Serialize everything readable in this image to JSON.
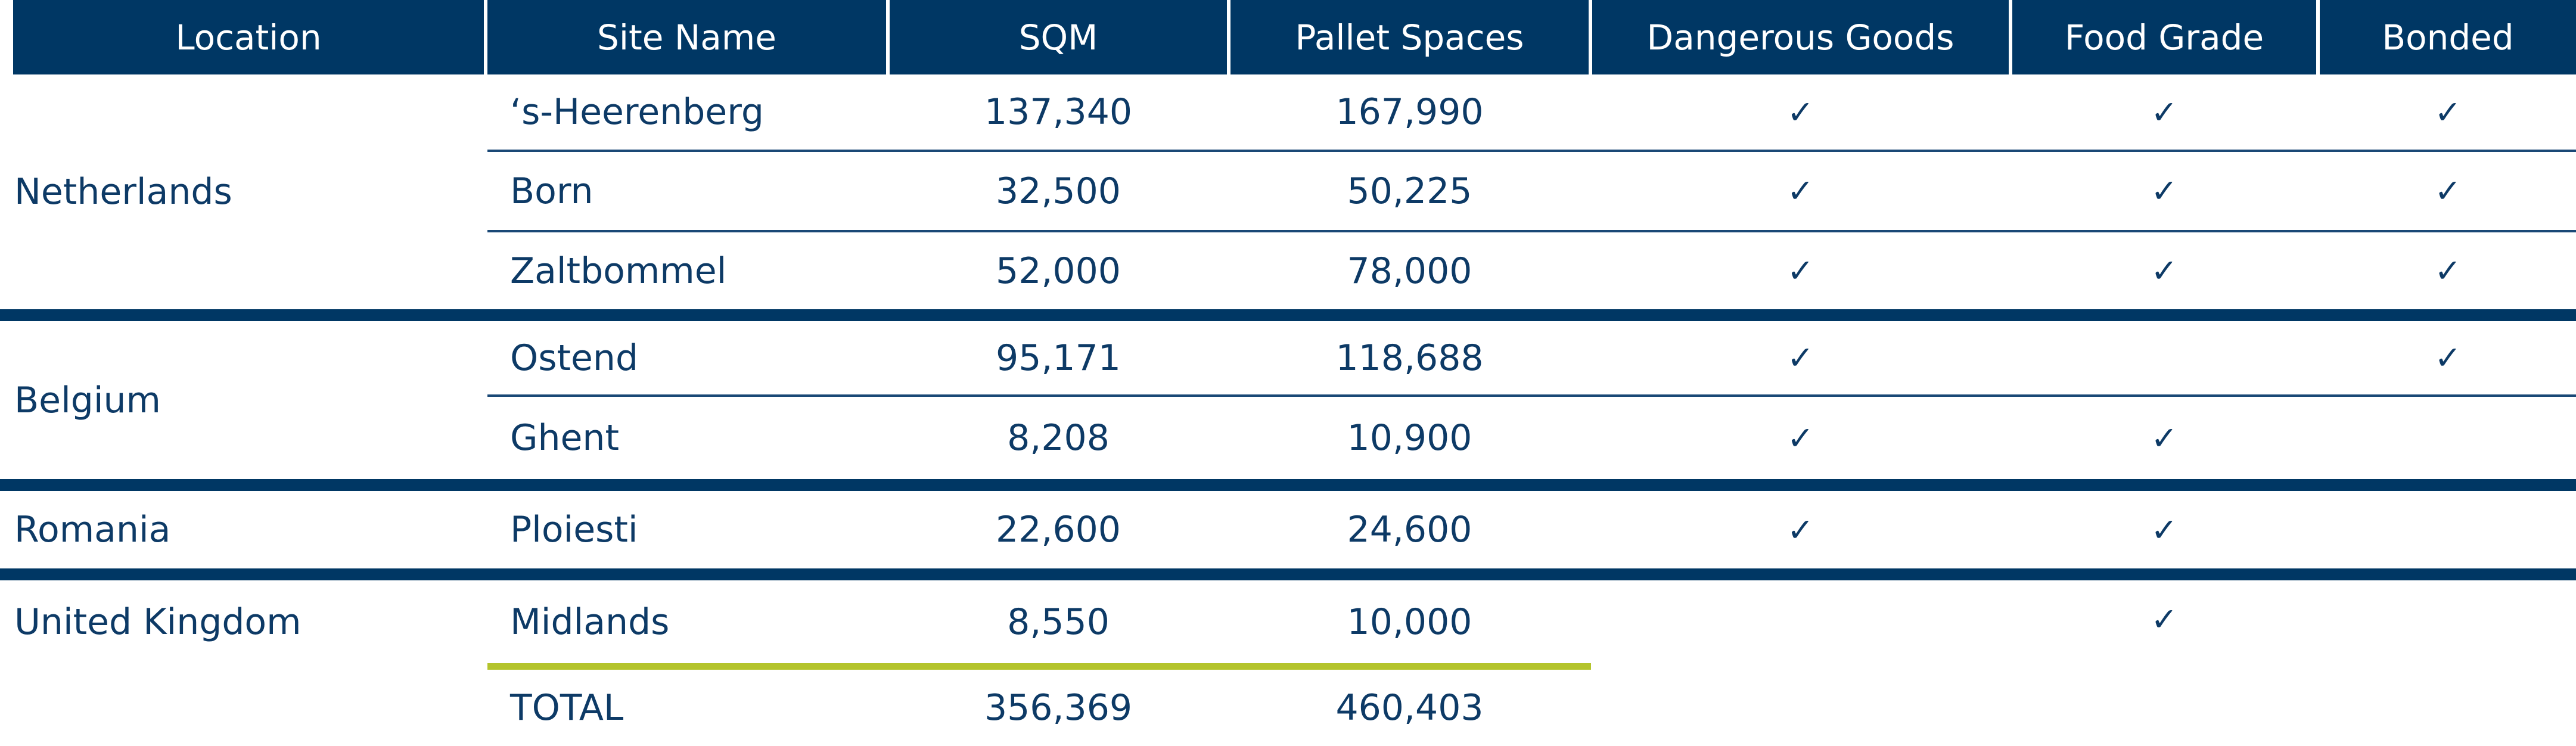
{
  "headers": {
    "location": "Location",
    "site_name": "Site Name",
    "sqm": "SQM",
    "pallet_spaces": "Pallet Spaces",
    "dangerous_goods": "Dangerous Goods",
    "food_grade": "Food Grade",
    "bonded": "Bonded"
  },
  "check_glyph": "✓",
  "groups": [
    {
      "country": "Netherlands",
      "rows": [
        {
          "site": "‘s-Heerenberg",
          "sqm": "137,340",
          "pallets": "167,990",
          "dangerous_goods": true,
          "food_grade": true,
          "bonded": true
        },
        {
          "site": "Born",
          "sqm": "32,500",
          "pallets": "50,225",
          "dangerous_goods": true,
          "food_grade": true,
          "bonded": true
        },
        {
          "site": "Zaltbommel",
          "sqm": "52,000",
          "pallets": "78,000",
          "dangerous_goods": true,
          "food_grade": true,
          "bonded": true
        }
      ]
    },
    {
      "country": "Belgium",
      "rows": [
        {
          "site": "Ostend",
          "sqm": "95,171",
          "pallets": "118,688",
          "dangerous_goods": true,
          "food_grade": false,
          "bonded": true
        },
        {
          "site": "Ghent",
          "sqm": "8,208",
          "pallets": "10,900",
          "dangerous_goods": true,
          "food_grade": true,
          "bonded": false
        }
      ]
    },
    {
      "country": "Romania",
      "rows": [
        {
          "site": "Ploiesti",
          "sqm": "22,600",
          "pallets": "24,600",
          "dangerous_goods": true,
          "food_grade": true,
          "bonded": false
        }
      ]
    },
    {
      "country": "United Kingdom",
      "rows": [
        {
          "site": "Midlands",
          "sqm": "8,550",
          "pallets": "10,000",
          "dangerous_goods": false,
          "food_grade": true,
          "bonded": false
        }
      ]
    }
  ],
  "total": {
    "label": "TOTAL",
    "sqm": "356,369",
    "pallets": "460,403"
  },
  "colors": {
    "header_bg": "#003764",
    "text": "#0d3a66",
    "total_rule": "#b4c42c"
  }
}
